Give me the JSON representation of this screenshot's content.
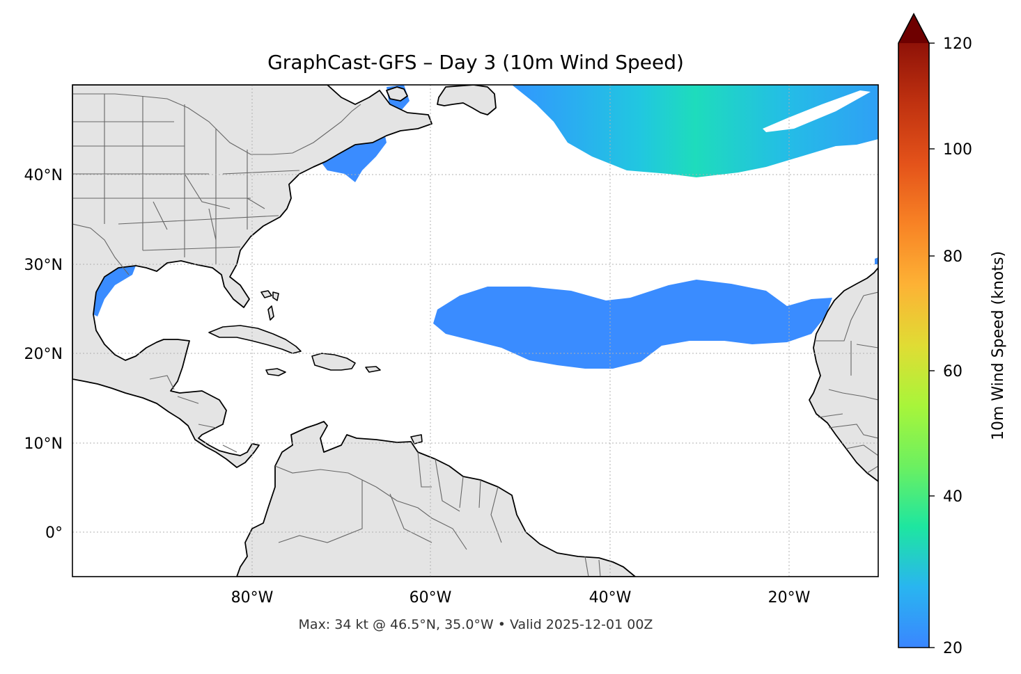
{
  "title": "GraphCast-GFS – Day 3 (10m Wind Speed)",
  "footer": "Max: 34 kt @ 46.5°N, 35.0°W • Valid 2025-12-01 00Z",
  "axes": {
    "lon_ticks": [
      "80°W",
      "60°W",
      "40°W",
      "20°W"
    ],
    "lat_ticks": [
      "40°N",
      "30°N",
      "20°N",
      "10°N",
      "0°"
    ]
  },
  "colorbar": {
    "label": "10m Wind Speed (knots)",
    "ticks": [
      "20",
      "40",
      "60",
      "80",
      "100",
      "120"
    ],
    "min": 20,
    "max": 120,
    "extend": "max",
    "colors": [
      "#3a86ff",
      "#23c4e4",
      "#1ee6a0",
      "#6cf060",
      "#a8f53a",
      "#e0dc34",
      "#fdb235",
      "#f88325",
      "#e4531a",
      "#c03210",
      "#8f1208",
      "#6e0000"
    ]
  },
  "colors": {
    "land": "#e4e4e4",
    "wind_low": "#3a8cff",
    "wind_mid": "#20d8b8"
  }
}
